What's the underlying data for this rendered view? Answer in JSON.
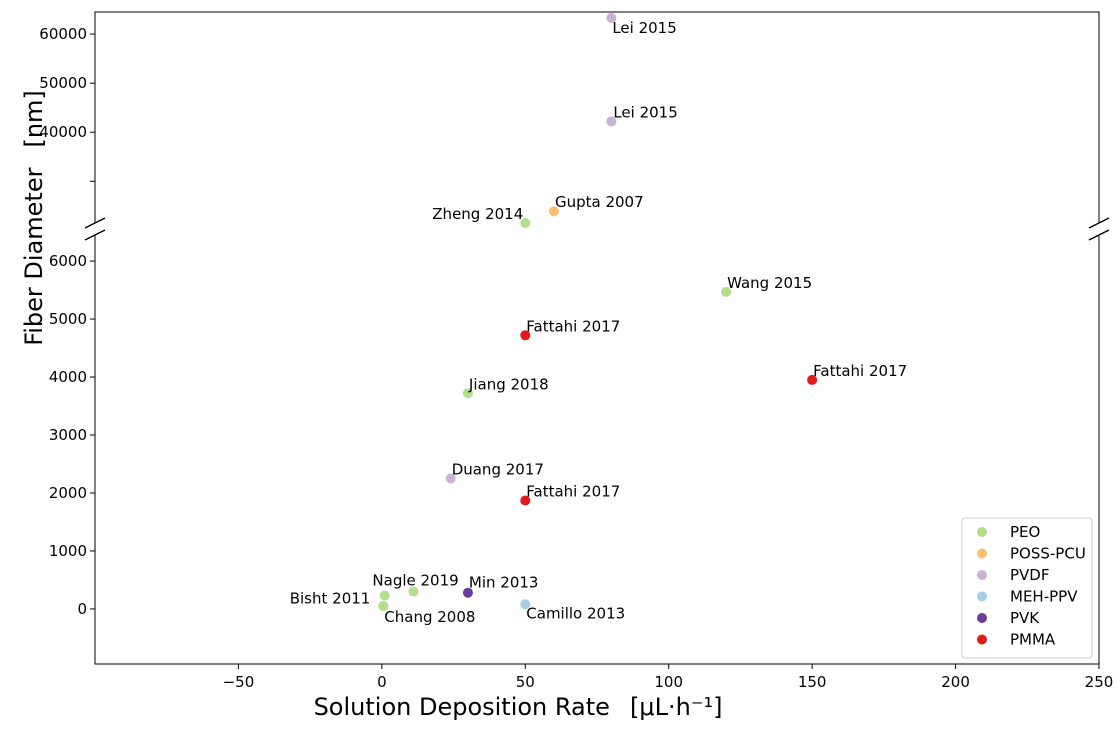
{
  "chart_data": {
    "type": "scatter",
    "title": "",
    "xlabel": "Solution Deposition Rate",
    "xlabel_unit": "[μL·h⁻¹]",
    "ylabel": "Fiber Diameter",
    "ylabel_unit": "[nm]",
    "xlim": [
      -100,
      250
    ],
    "x_ticks": [
      -50,
      0,
      50,
      100,
      150,
      200,
      250
    ],
    "y_axis_break": true,
    "upper_ylim": [
      21500,
      64500
    ],
    "upper_y_ticks": [
      40000,
      50000,
      60000
    ],
    "lower_ylim": [
      -950,
      6450
    ],
    "lower_y_ticks": [
      0,
      1000,
      2000,
      3000,
      4000,
      5000,
      6000
    ],
    "legend_position": "bottom-right",
    "series": [
      {
        "name": "PEO",
        "color": "#b2df8a",
        "points": [
          {
            "x": 50,
            "y": 21500,
            "label": "Zheng 2014"
          },
          {
            "x": 120,
            "y": 5470,
            "label": "Wang 2015"
          },
          {
            "x": 30,
            "y": 3720,
            "label": "Jiang 2018"
          },
          {
            "x": 11,
            "y": 300,
            "label": "Nagle 2019"
          },
          {
            "x": 1,
            "y": 230,
            "label": "Bisht 2011"
          },
          {
            "x": 0.5,
            "y": 50,
            "label": "Chang 2008"
          }
        ]
      },
      {
        "name": "POSS-PCU",
        "color": "#fdbf6f",
        "points": [
          {
            "x": 60,
            "y": 23900,
            "label": "Gupta 2007"
          }
        ]
      },
      {
        "name": "PVDF",
        "color": "#cab2d6",
        "points": [
          {
            "x": 80,
            "y": 63300,
            "label": "Lei 2015"
          },
          {
            "x": 80,
            "y": 42200,
            "label": "Lei 2015"
          },
          {
            "x": 24,
            "y": 2250,
            "label": "Duang 2017"
          }
        ]
      },
      {
        "name": "MEH-PPV",
        "color": "#a6cee3",
        "points": [
          {
            "x": 50,
            "y": 80,
            "label": "Camillo 2013"
          }
        ]
      },
      {
        "name": "PVK",
        "color": "#6a3d9a",
        "points": [
          {
            "x": 30,
            "y": 280,
            "label": "Min 2013"
          }
        ]
      },
      {
        "name": "PMMA",
        "color": "#e31a1c",
        "points": [
          {
            "x": 50,
            "y": 4720,
            "label": "Fattahi 2017"
          },
          {
            "x": 150,
            "y": 3950,
            "label": "Fattahi 2017"
          },
          {
            "x": 50,
            "y": 1870,
            "label": "Fattahi 2017"
          }
        ]
      }
    ]
  }
}
